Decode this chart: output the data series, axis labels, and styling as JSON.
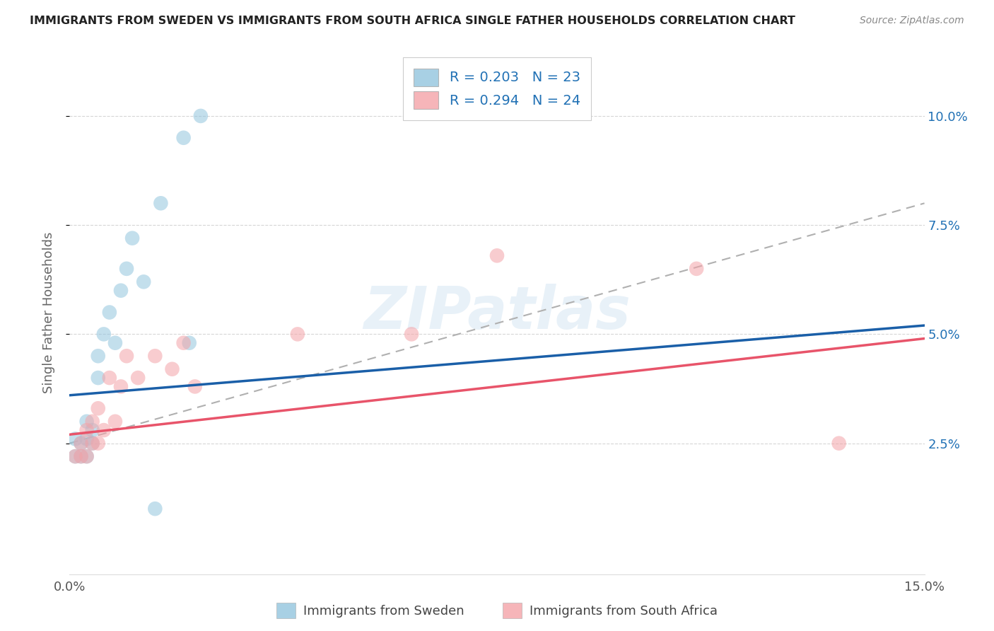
{
  "title": "IMMIGRANTS FROM SWEDEN VS IMMIGRANTS FROM SOUTH AFRICA SINGLE FATHER HOUSEHOLDS CORRELATION CHART",
  "source": "Source: ZipAtlas.com",
  "ylabel": "Single Father Households",
  "legend_label_1": "Immigrants from Sweden",
  "legend_label_2": "Immigrants from South Africa",
  "r1": 0.203,
  "n1": 23,
  "r2": 0.294,
  "n2": 24,
  "color_sweden": "#92c5de",
  "color_south_africa": "#f4a3a8",
  "color_trend_sweden": "#1a5fa8",
  "color_trend_south_africa": "#e8546a",
  "color_trend_dashed": "#b0b0b0",
  "watermark_text": "ZIPatlas",
  "xlim": [
    0.0,
    0.15
  ],
  "ylim": [
    -0.005,
    0.115
  ],
  "y_ticks": [
    0.025,
    0.05,
    0.075,
    0.1
  ],
  "y_tick_labels": [
    "2.5%",
    "5.0%",
    "7.5%",
    "10.0%"
  ],
  "x_ticks": [
    0.0,
    0.05,
    0.1,
    0.15
  ],
  "x_tick_labels": [
    "0.0%",
    "",
    "",
    "15.0%"
  ],
  "sweden_x": [
    0.001,
    0.001,
    0.002,
    0.002,
    0.003,
    0.003,
    0.003,
    0.004,
    0.004,
    0.005,
    0.005,
    0.006,
    0.007,
    0.008,
    0.009,
    0.01,
    0.011,
    0.013,
    0.015,
    0.016,
    0.02,
    0.021,
    0.023
  ],
  "sweden_y": [
    0.022,
    0.026,
    0.022,
    0.025,
    0.022,
    0.026,
    0.03,
    0.025,
    0.028,
    0.04,
    0.045,
    0.05,
    0.055,
    0.048,
    0.06,
    0.065,
    0.072,
    0.062,
    0.01,
    0.08,
    0.095,
    0.048,
    0.1
  ],
  "south_africa_x": [
    0.001,
    0.002,
    0.002,
    0.003,
    0.003,
    0.004,
    0.004,
    0.005,
    0.005,
    0.006,
    0.007,
    0.008,
    0.009,
    0.01,
    0.012,
    0.015,
    0.018,
    0.02,
    0.022,
    0.04,
    0.06,
    0.075,
    0.11,
    0.135
  ],
  "south_africa_y": [
    0.022,
    0.022,
    0.025,
    0.022,
    0.028,
    0.025,
    0.03,
    0.025,
    0.033,
    0.028,
    0.04,
    0.03,
    0.038,
    0.045,
    0.04,
    0.045,
    0.042,
    0.048,
    0.038,
    0.05,
    0.05,
    0.068,
    0.065,
    0.025
  ],
  "trend_sw_x0": 0.0,
  "trend_sw_y0": 0.036,
  "trend_sw_x1": 0.15,
  "trend_sw_y1": 0.052,
  "trend_sa_x0": 0.0,
  "trend_sa_y0": 0.027,
  "trend_sa_x1": 0.15,
  "trend_sa_y1": 0.049,
  "trend_dash_x0": 0.0,
  "trend_dash_y0": 0.025,
  "trend_dash_x1": 0.15,
  "trend_dash_y1": 0.08,
  "background_color": "#ffffff",
  "grid_color": "#cccccc",
  "title_fontsize": 11.5,
  "source_fontsize": 10,
  "tick_fontsize": 13,
  "legend_fontsize": 14,
  "ylabel_fontsize": 13
}
